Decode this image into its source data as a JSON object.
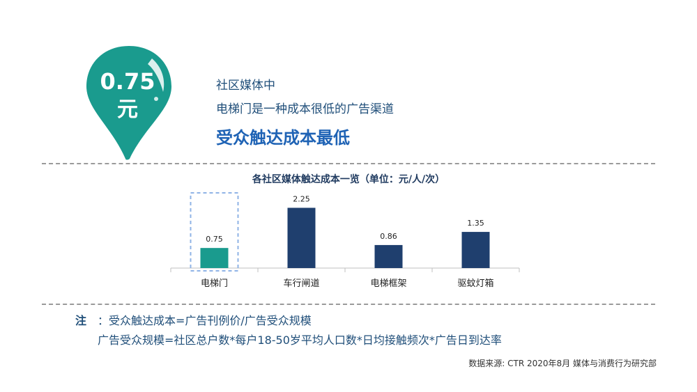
{
  "pin": {
    "value": "0.75",
    "unit": "元",
    "color": "#1a9b8e"
  },
  "headline": {
    "line1": "社区媒体中",
    "line2": "电梯门是一种成本很低的广告渠道",
    "line3": "受众触达成本最低"
  },
  "chart_data": {
    "type": "bar",
    "title": "各社区媒体触达成本一览（单位：元/人/次）",
    "categories": [
      "电梯门",
      "车行闸道",
      "电梯框架",
      "驱蚊灯箱"
    ],
    "values": [
      0.75,
      2.25,
      0.86,
      1.35
    ],
    "value_labels": [
      "0.75",
      "2.25",
      "0.86",
      "1.35"
    ],
    "highlight_index": 0,
    "colors": {
      "highlight": "#1a9b8e",
      "default": "#1f3f6e",
      "highlight_box": "#8fb3e6"
    },
    "ylim": [
      0,
      2.6
    ],
    "grid": false
  },
  "notes": {
    "label": "注",
    "line1": "：受众触达成本=广告刊例价/广告受众规模",
    "line2": "广告受众规模=社区总户数*每户18-50岁平均人口数*日均接触频次*广告日到达率"
  },
  "source": "数据来源: CTR 2020年8月 媒体与消费行为研究部"
}
